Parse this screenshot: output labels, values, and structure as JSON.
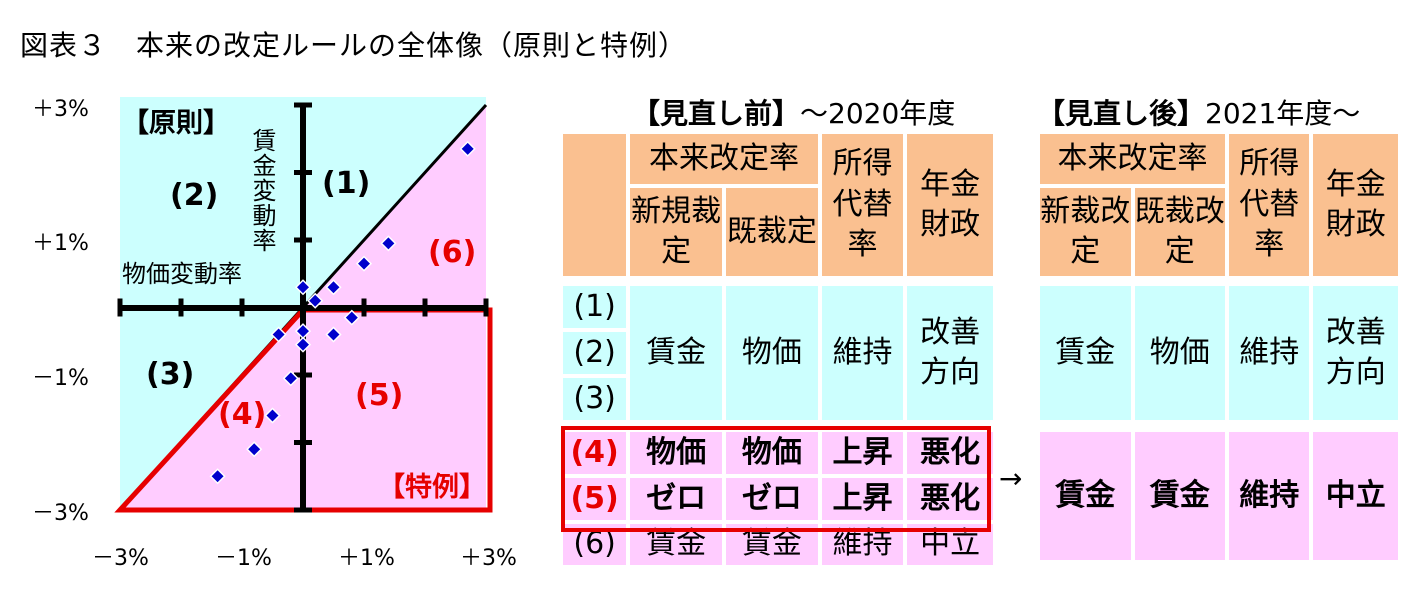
{
  "title": "図表３　本来の改定ルールの全体像（原則と特例）",
  "chart_data": {
    "type": "scatter",
    "x_ticks": [
      "－3%",
      "－1%",
      "＋1%",
      "＋3%"
    ],
    "y_ticks": [
      "＋3%",
      "＋1%",
      "－1%",
      "－3%"
    ],
    "xlim": [
      -3,
      3
    ],
    "ylim": [
      -3,
      3
    ],
    "xlabel": "物価変動率",
    "ylabel": "賃金変動率",
    "points": [
      {
        "x": -1.4,
        "y": -2.5
      },
      {
        "x": -0.8,
        "y": -2.1
      },
      {
        "x": -0.5,
        "y": -1.6
      },
      {
        "x": -0.2,
        "y": -1.05
      },
      {
        "x": -0.4,
        "y": -0.4
      },
      {
        "x": 0.0,
        "y": -0.55
      },
      {
        "x": 0.0,
        "y": -0.35
      },
      {
        "x": 0.0,
        "y": 0.3
      },
      {
        "x": 0.2,
        "y": 0.1
      },
      {
        "x": 0.5,
        "y": 0.3
      },
      {
        "x": 0.5,
        "y": -0.4
      },
      {
        "x": 0.8,
        "y": -0.15
      },
      {
        "x": 1.0,
        "y": 0.65
      },
      {
        "x": 1.4,
        "y": 0.95
      },
      {
        "x": 2.7,
        "y": 2.35
      }
    ],
    "labels": {
      "principle": "【原則】",
      "exception": "【特例】",
      "r1": "(1)",
      "r2": "(2)",
      "r3": "(3)",
      "r4": "(4)",
      "r5": "(5)",
      "r6": "(6)"
    },
    "colors": {
      "blue": "#ccfffe",
      "pink": "#ffccff",
      "red": "#e60000",
      "marker": "#0000cc"
    }
  },
  "before": {
    "heading_bold": "【見直し前】",
    "heading_rest": "～2020年度",
    "h_rate": "本来改定率",
    "h_new": "新規裁定",
    "h_existing": "既裁定",
    "h_replace": "所得代替率",
    "h_finance": "年金財政",
    "rows": [
      {
        "label": "(1)"
      },
      {
        "label": "(2)"
      },
      {
        "label": "(3)"
      }
    ],
    "group1": {
      "new": "賃金",
      "existing": "物価",
      "replace": "維持",
      "finance": "改善方向"
    },
    "row4": {
      "label": "(4)",
      "new": "物価",
      "existing": "物価",
      "replace": "上昇",
      "finance": "悪化"
    },
    "row5": {
      "label": "(5)",
      "new": "ゼロ",
      "existing": "ゼロ",
      "replace": "上昇",
      "finance": "悪化"
    },
    "row6": {
      "label": "(6)",
      "new": "賃金",
      "existing": "賃金",
      "replace": "維持",
      "finance": "中立"
    }
  },
  "after": {
    "heading_bold": "【見直し後】",
    "heading_rest": "2021年度～",
    "h_rate": "本来改定率",
    "h_new": "新裁改定",
    "h_existing": "既裁改定",
    "h_replace": "所得代替率",
    "h_finance": "年金財政",
    "group1": {
      "new": "賃金",
      "existing": "物価",
      "replace": "維持",
      "finance": "改善方向"
    },
    "group2": {
      "new": "賃金",
      "existing": "賃金",
      "replace": "維持",
      "finance": "中立"
    }
  },
  "arrow": "→"
}
